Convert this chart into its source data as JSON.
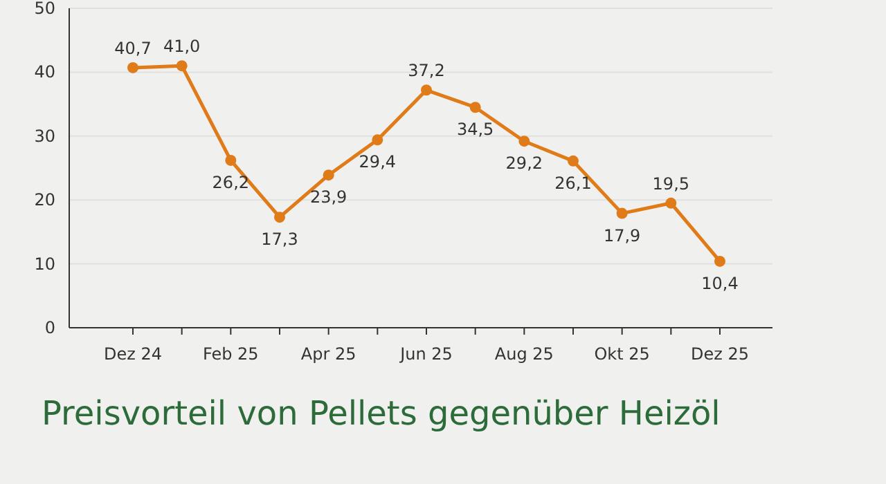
{
  "chart_data": {
    "type": "line",
    "title": "Preisvorteil von Pellets gegenüber Heizöl",
    "categories": [
      "Dez 24",
      null,
      "Feb 25",
      null,
      "Apr 25",
      null,
      "Jun 25",
      null,
      "Aug 25",
      null,
      "Okt 25",
      null,
      "Dez 25"
    ],
    "series": [
      {
        "color": "#e07b1a",
        "values": [
          40.7,
          41.0,
          26.2,
          17.3,
          23.9,
          29.4,
          37.2,
          34.5,
          29.2,
          26.1,
          17.9,
          19.5,
          10.4
        ]
      }
    ],
    "value_labels": [
      "40,7",
      "41,0",
      "26,2",
      "17,3",
      "23,9",
      "29,4",
      "37,2",
      "34,5",
      "29,2",
      "26,1",
      "17,9",
      "19,5",
      "10,4"
    ],
    "ylim": [
      0,
      50
    ],
    "yticks": [
      0,
      10,
      20,
      30,
      40,
      50
    ],
    "grid": "y",
    "marker": "circle",
    "line_style": "solid"
  }
}
